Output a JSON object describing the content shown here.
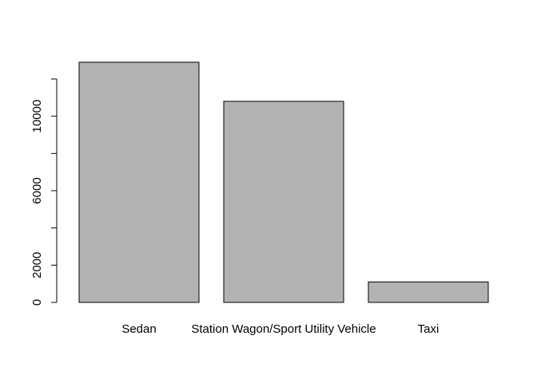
{
  "chart_data": {
    "type": "bar",
    "categories": [
      "Sedan",
      "Station Wagon/Sport Utility Vehicle",
      "Taxi"
    ],
    "values": [
      12900,
      10800,
      1100
    ],
    "title": "",
    "xlabel": "",
    "ylabel": "",
    "ylim": [
      0,
      12900
    ],
    "yticks": [
      0,
      2000,
      4000,
      6000,
      8000,
      10000,
      12000
    ],
    "ytick_labels": [
      "0",
      "2000",
      "",
      "6000",
      "",
      "10000",
      ""
    ],
    "bar_color": "#b3b3b3",
    "grid": false,
    "legend": "none"
  }
}
